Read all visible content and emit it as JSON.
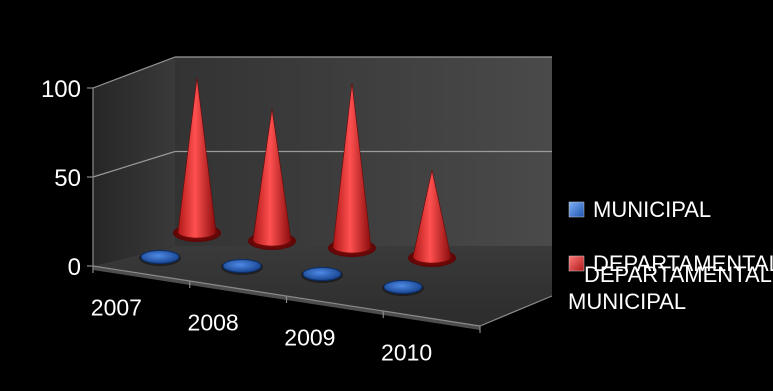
{
  "chart_data": {
    "type": "3d-cone",
    "title": "",
    "categories": [
      "2007",
      "2008",
      "2009",
      "2010"
    ],
    "series": [
      {
        "name": "MUNICIPAL",
        "values": [
          2,
          2,
          2,
          2
        ],
        "color": "#2e6fd0"
      },
      {
        "name": "DEPARTAMENTAL",
        "values": [
          80,
          68,
          85,
          45
        ],
        "color": "#e02a2a"
      }
    ],
    "depth_axis_labels": [
      "DEPARTAMENTAL",
      "MUNICIPAL"
    ],
    "y_ticks": [
      "0",
      "50",
      "100"
    ],
    "ylim": [
      0,
      100
    ],
    "grid": true,
    "legend_position": "right",
    "background": "#000000"
  }
}
